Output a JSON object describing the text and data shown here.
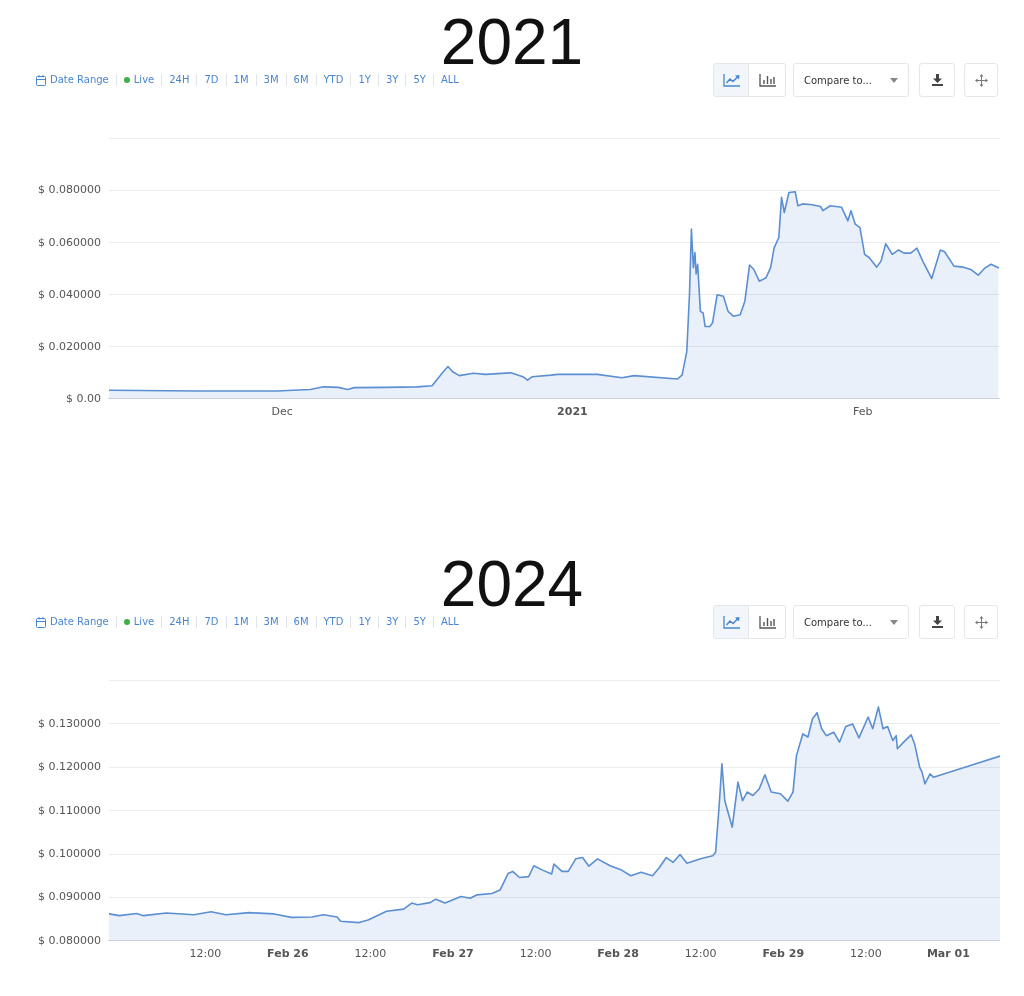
{
  "chart_data": [
    {
      "type": "area",
      "title": "2021",
      "annotations": [
        "Date Range",
        "Live",
        "24H",
        "7D",
        "1M",
        "3M",
        "6M",
        "YTD",
        "1Y",
        "3Y",
        "5Y",
        "ALL",
        "Compare to..."
      ],
      "x": [
        "2020-11-12T12:00",
        "2020-11-22",
        "2020-11-30T10:00",
        "2020-12-04",
        "2020-12-05T10:00",
        "2020-12-07",
        "2020-12-08",
        "2020-12-08T17:00",
        "2020-12-12",
        "2020-12-15T10:00",
        "2020-12-17",
        "2020-12-17T12:00",
        "2020-12-18T05:00",
        "2020-12-18T17:00",
        "2020-12-19T05:00",
        "2020-12-19T22:00",
        "2020-12-21T10:00",
        "2020-12-22T17:00",
        "2020-12-25T10:00",
        "2020-12-26T17:00",
        "2020-12-27T05:00",
        "2020-12-27T17:00",
        "2020-12-29T17:00",
        "2020-12-30T10:00",
        "2021-01-03T16:00",
        "2021-01-06T07:00",
        "2021-01-07T14:00",
        "2021-01-12T05:00",
        "2021-01-12T17:00",
        "2021-01-13T05:00",
        "2021-01-13T12:00",
        "2021-01-13T17:00",
        "2021-01-13T22:00",
        "2021-01-14T02:00",
        "2021-01-14T05:00",
        "2021-01-14T09:00",
        "2021-01-14T16:00",
        "2021-01-14T23:00",
        "2021-01-15T04:00",
        "2021-01-15T16:00",
        "2021-01-15T23:00",
        "2021-01-16T11:00",
        "2021-01-17T03:00",
        "2021-01-17T15:00",
        "2021-01-18T05:00",
        "2021-01-18T22:00",
        "2021-01-19T10:00",
        "2021-01-19T22:00",
        "2021-01-20T09:00",
        "2021-01-20T23:00",
        "2021-01-21T16:00",
        "2021-01-22T04:00",
        "2021-01-22T13:00",
        "2021-01-23T01:00",
        "2021-01-23T08:00",
        "2021-01-23T15:00",
        "2021-01-24T03:00",
        "2021-01-24T19:00",
        "2021-01-25T02:00",
        "2021-01-25T14:00",
        "2021-01-26T14:00",
        "2021-01-27T12:00",
        "2021-01-27T18:00",
        "2021-01-28T13:00",
        "2021-01-29T18:00",
        "2021-01-30T10:00",
        "2021-01-30T18:00",
        "2021-01-31T05:00",
        "2021-01-31T17:00",
        "2021-02-01T05:00",
        "2021-02-01T17:00",
        "2021-02-02T12:00",
        "2021-02-02T23:00",
        "2021-02-03T11:00",
        "2021-02-04T04:00",
        "2021-02-04T20:00",
        "2021-02-05T10:00",
        "2021-02-06T03:00",
        "2021-02-06T19:00",
        "2021-02-07T10:00",
        "2021-02-08T09:00",
        "2021-02-09T07:00",
        "2021-02-09T18:00",
        "2021-02-10T18:00",
        "2021-02-11T18:00",
        "2021-02-12T13:00",
        "2021-02-13T08:00",
        "2021-02-14T00:00",
        "2021-02-14T17:00",
        "2021-02-15T12:00"
      ],
      "values": [
        0.0033,
        0.003,
        0.003,
        0.0036,
        0.0046,
        0.0044,
        0.0036,
        0.0043,
        0.0044,
        0.0046,
        0.005,
        0.0072,
        0.0104,
        0.0124,
        0.0104,
        0.0089,
        0.0098,
        0.0094,
        0.01,
        0.0085,
        0.0072,
        0.0085,
        0.0091,
        0.0094,
        0.0094,
        0.0081,
        0.0089,
        0.0076,
        0.0091,
        0.018,
        0.04,
        0.0652,
        0.0504,
        0.0562,
        0.048,
        0.0517,
        0.0336,
        0.033,
        0.0278,
        0.0278,
        0.0291,
        0.04,
        0.0394,
        0.0336,
        0.0317,
        0.0323,
        0.0375,
        0.0514,
        0.0497,
        0.0452,
        0.0465,
        0.0504,
        0.058,
        0.062,
        0.0774,
        0.0716,
        0.0793,
        0.0796,
        0.0742,
        0.0749,
        0.0746,
        0.0739,
        0.0723,
        0.0742,
        0.0736,
        0.0684,
        0.0723,
        0.0671,
        0.0658,
        0.0555,
        0.0542,
        0.0506,
        0.0529,
        0.0596,
        0.0555,
        0.0572,
        0.056,
        0.056,
        0.0579,
        0.0529,
        0.0462,
        0.0572,
        0.0565,
        0.051,
        0.0506,
        0.0497,
        0.0475,
        0.0501,
        0.0517,
        0.0504
      ],
      "color": "#5b8fd1",
      "xlim": [
        "2020-11-12T12:00",
        "2021-02-15T16:00"
      ],
      "xticks": [
        {
          "value": "2020-12-01",
          "label": "Dec"
        },
        {
          "value": "2021-01-01",
          "label": "2021"
        },
        {
          "value": "2021-02-01",
          "label": "Feb"
        }
      ],
      "ylim": [
        0,
        0.1
      ],
      "yticks": [
        {
          "value": 0,
          "label": "$ 0.00"
        },
        {
          "value": 0.02,
          "label": "$ 0.020000"
        },
        {
          "value": 0.04,
          "label": "$ 0.040000"
        },
        {
          "value": 0.06,
          "label": "$ 0.060000"
        },
        {
          "value": 0.08,
          "label": "$ 0.080000"
        },
        {
          "value": 0.1,
          "label": null
        }
      ],
      "grid": "y"
    },
    {
      "type": "area",
      "title": "2024",
      "annotations": [
        "Date Range",
        "Live",
        "24H",
        "7D",
        "1M",
        "3M",
        "6M",
        "YTD",
        "1Y",
        "3Y",
        "5Y",
        "ALL",
        "Compare to..."
      ],
      "x": [
        "2024-02-24T22:00",
        "2024-02-24T23:30",
        "2024-02-25T02:00",
        "2024-02-25T03:00",
        "2024-02-25T06:20",
        "2024-02-25T10:20",
        "2024-02-25T12:50",
        "2024-02-25T15:00",
        "2024-02-25T18:20",
        "2024-02-25T22:00",
        "2024-02-26T00:30",
        "2024-02-26T03:30",
        "2024-02-26T05:10",
        "2024-02-26T07:10",
        "2024-02-26T07:40",
        "2024-02-26T10:20",
        "2024-02-26T11:40",
        "2024-02-26T14:20",
        "2024-02-26T16:50",
        "2024-02-26T18:00",
        "2024-02-26T18:50",
        "2024-02-26T20:40",
        "2024-02-26T21:30",
        "2024-02-26T22:50",
        "2024-02-27T01:10",
        "2024-02-27T02:30",
        "2024-02-27T03:30",
        "2024-02-27T05:40",
        "2024-02-27T06:50",
        "2024-02-27T08:00",
        "2024-02-27T08:40",
        "2024-02-27T09:40",
        "2024-02-27T11:00",
        "2024-02-27T11:45",
        "2024-02-27T13:00",
        "2024-02-27T14:20",
        "2024-02-27T14:40",
        "2024-02-27T15:50",
        "2024-02-27T16:45",
        "2024-02-27T17:50",
        "2024-02-27T18:50",
        "2024-02-27T19:45",
        "2024-02-27T21:00",
        "2024-02-27T22:50",
        "2024-02-28T00:30",
        "2024-02-28T01:50",
        "2024-02-28T03:20",
        "2024-02-28T05:00",
        "2024-02-28T06:00",
        "2024-02-28T07:00",
        "2024-02-28T08:00",
        "2024-02-28T09:00",
        "2024-02-28T10:00",
        "2024-02-28T12:00",
        "2024-02-28T13:45",
        "2024-02-28T14:10",
        "2024-02-28T14:40",
        "2024-02-28T15:05",
        "2024-02-28T15:30",
        "2024-02-28T16:35",
        "2024-02-28T17:25",
        "2024-02-28T18:05",
        "2024-02-28T18:45",
        "2024-02-28T19:35",
        "2024-02-28T20:30",
        "2024-02-28T21:20",
        "2024-02-28T22:15",
        "2024-02-28T23:35",
        "2024-02-29T00:40",
        "2024-02-29T01:25",
        "2024-02-29T01:55",
        "2024-02-29T02:50",
        "2024-02-29T03:35",
        "2024-02-29T04:15",
        "2024-02-29T04:55",
        "2024-02-29T05:35",
        "2024-02-29T06:15",
        "2024-02-29T07:20",
        "2024-02-29T08:10",
        "2024-02-29T09:05",
        "2024-02-29T10:05",
        "2024-02-29T11:00",
        "2024-02-29T12:20",
        "2024-02-29T13:00",
        "2024-02-29T13:50",
        "2024-02-29T14:30",
        "2024-02-29T15:10",
        "2024-02-29T15:55",
        "2024-02-29T16:25",
        "2024-02-29T16:35",
        "2024-02-29T17:30",
        "2024-02-29T18:35",
        "2024-02-29T19:05",
        "2024-02-29T19:50",
        "2024-02-29T20:10",
        "2024-02-29T20:35",
        "2024-02-29T21:20",
        "2024-02-29T21:50",
        "2024-03-01T07:30"
      ],
      "values": [
        0.0862,
        0.0858,
        0.0863,
        0.0858,
        0.0864,
        0.086,
        0.0867,
        0.086,
        0.0865,
        0.0862,
        0.0854,
        0.0855,
        0.086,
        0.0855,
        0.0845,
        0.0842,
        0.0848,
        0.0868,
        0.0873,
        0.0887,
        0.0883,
        0.0888,
        0.0896,
        0.0887,
        0.0902,
        0.0898,
        0.0906,
        0.0909,
        0.0917,
        0.0955,
        0.096,
        0.0946,
        0.0948,
        0.0973,
        0.0963,
        0.0954,
        0.0977,
        0.096,
        0.096,
        0.0989,
        0.0992,
        0.0972,
        0.0989,
        0.0973,
        0.0963,
        0.095,
        0.0958,
        0.095,
        0.0969,
        0.0992,
        0.0981,
        0.0999,
        0.0979,
        0.0989,
        0.0996,
        0.1004,
        0.1108,
        0.1208,
        0.1123,
        0.1062,
        0.1166,
        0.1123,
        0.1143,
        0.1135,
        0.115,
        0.1183,
        0.1143,
        0.1139,
        0.1122,
        0.1143,
        0.1227,
        0.1277,
        0.127,
        0.1312,
        0.1326,
        0.1289,
        0.1273,
        0.1281,
        0.1258,
        0.1294,
        0.13,
        0.1268,
        0.1316,
        0.1289,
        0.1339,
        0.1289,
        0.1294,
        0.1262,
        0.1273,
        0.1243,
        0.1258,
        0.1275,
        0.1254,
        0.12,
        0.1189,
        0.1162,
        0.1185,
        0.1177,
        0.1226
      ],
      "color": "#5b8fd1",
      "xlim": [
        "2024-02-24T22:00",
        "2024-03-01T07:30"
      ],
      "xticks": [
        {
          "value": "2024-02-25T12:00",
          "label": "12:00"
        },
        {
          "value": "2024-02-26",
          "label": "Feb 26"
        },
        {
          "value": "2024-02-26T12:00",
          "label": "12:00"
        },
        {
          "value": "2024-02-27",
          "label": "Feb 27"
        },
        {
          "value": "2024-02-27T12:00",
          "label": "12:00"
        },
        {
          "value": "2024-02-28",
          "label": "Feb 28"
        },
        {
          "value": "2024-02-28T12:00",
          "label": "12:00"
        },
        {
          "value": "2024-02-29",
          "label": "Feb 29"
        },
        {
          "value": "2024-02-29T12:00",
          "label": "12:00"
        },
        {
          "value": "2024-03-01",
          "label": "Mar 01"
        }
      ],
      "ylim": [
        0.08,
        0.14
      ],
      "yticks": [
        {
          "value": 0.08,
          "label": "$ 0.080000"
        },
        {
          "value": 0.09,
          "label": "$ 0.090000"
        },
        {
          "value": 0.1,
          "label": "$ 0.100000"
        },
        {
          "value": 0.11,
          "label": "$ 0.110000"
        },
        {
          "value": 0.12,
          "label": "$ 0.120000"
        },
        {
          "value": 0.13,
          "label": "$ 0.130000"
        },
        {
          "value": 0.14,
          "label": null
        }
      ],
      "grid": "y"
    }
  ]
}
